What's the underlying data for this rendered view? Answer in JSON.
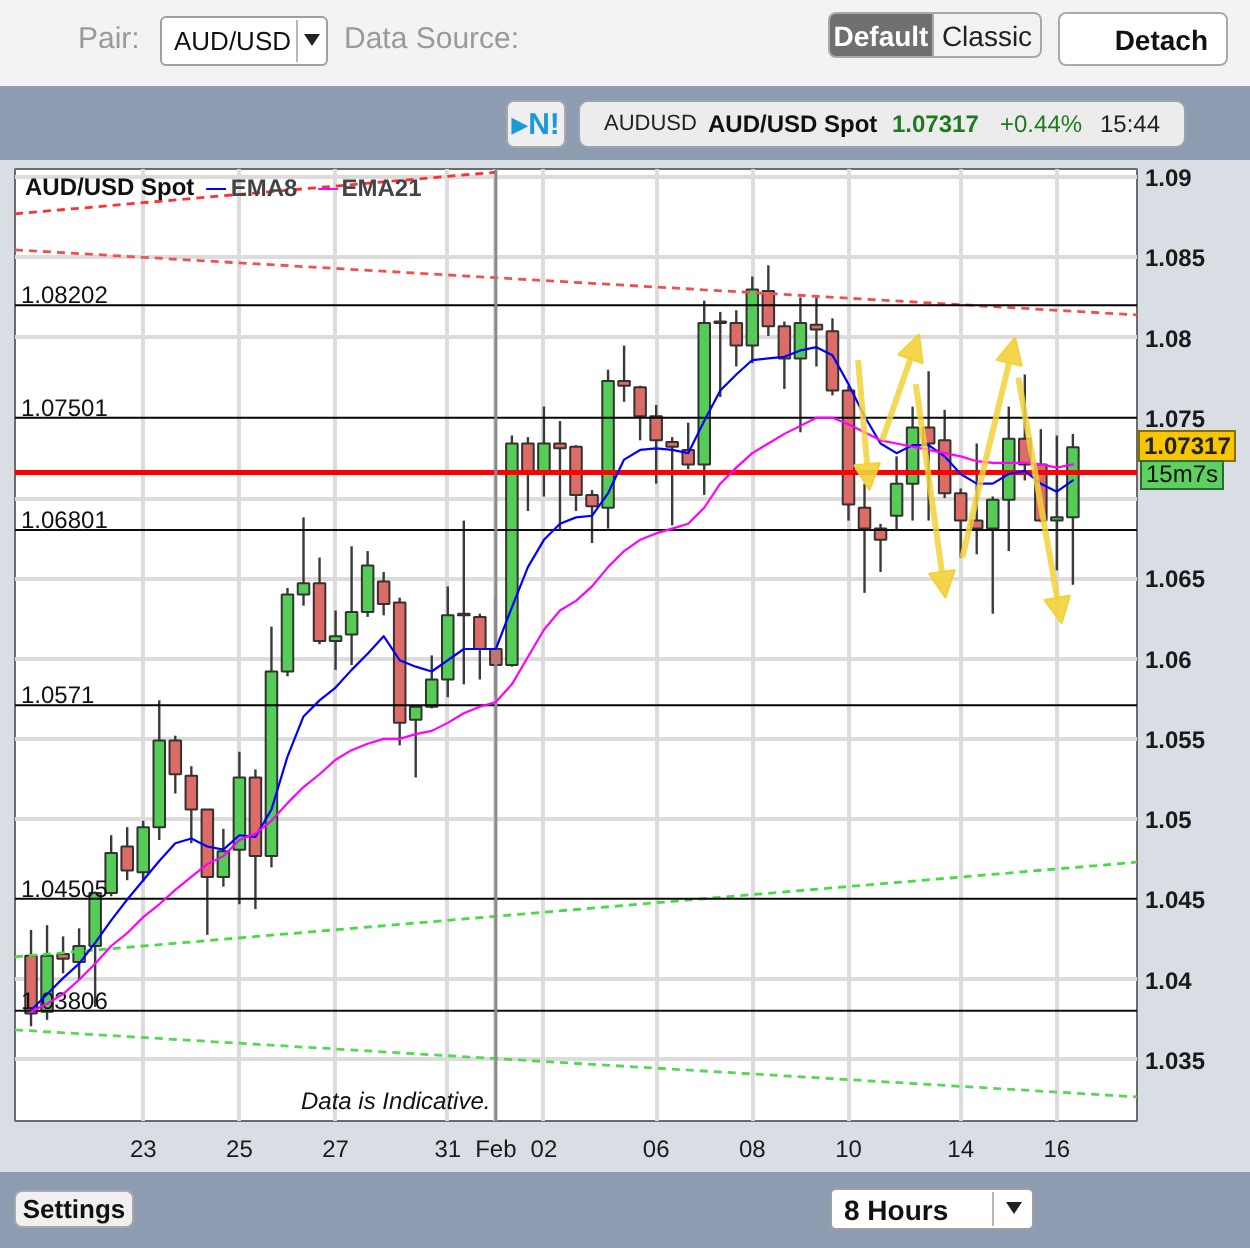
{
  "chart_data": {
    "type": "candlestick",
    "legend_title": "AUD/USD Spot",
    "legend": "top left",
    "grid": true,
    "categories": [
      null,
      null,
      null,
      null,
      null,
      null,
      null,
      "23",
      null,
      null,
      null,
      null,
      null,
      "25",
      null,
      null,
      null,
      null,
      null,
      "27",
      null,
      null,
      null,
      null,
      null,
      null,
      "31",
      null,
      null,
      "Feb",
      null,
      null,
      "02",
      null,
      null,
      null,
      null,
      null,
      null,
      "06",
      null,
      null,
      null,
      null,
      null,
      "08",
      null,
      null,
      null,
      null,
      null,
      "10",
      null,
      null,
      null,
      null,
      null,
      null,
      "14",
      null,
      null,
      null,
      null,
      null,
      "16",
      null
    ],
    "ylim": [
      1.0312,
      1.0905
    ],
    "yticks": [
      1.035,
      1.04,
      1.045,
      1.05,
      1.055,
      1.06,
      1.065,
      {
        "value": 1.07,
        "label": null
      },
      1.075,
      1.08,
      1.085,
      1.09
    ],
    "ohlc": [
      [
        1.0415,
        1.0431,
        1.0371,
        1.0379
      ],
      [
        1.038,
        1.0434,
        1.0375,
        1.0415
      ],
      [
        1.0416,
        1.0427,
        1.0404,
        1.0413
      ],
      [
        1.0411,
        1.0432,
        1.04,
        1.0421
      ],
      [
        1.0421,
        1.0455,
        1.0383,
        1.0454
      ],
      [
        1.0454,
        1.049,
        1.0452,
        1.0479
      ],
      [
        1.0483,
        1.0495,
        1.0462,
        1.0468
      ],
      [
        1.0467,
        1.0499,
        1.0461,
        1.0495
      ],
      [
        1.0495,
        1.0574,
        1.0487,
        1.0549
      ],
      [
        1.0549,
        1.0552,
        1.0516,
        1.0528
      ],
      [
        1.0527,
        1.0533,
        1.0485,
        1.0506
      ],
      [
        1.0506,
        1.0506,
        1.0428,
        1.0464
      ],
      [
        1.0464,
        1.0494,
        1.0458,
        1.048
      ],
      [
        1.0481,
        1.0542,
        1.0447,
        1.0526
      ],
      [
        1.0526,
        1.0531,
        1.0444,
        1.0477
      ],
      [
        1.0477,
        1.062,
        1.047,
        1.0592
      ],
      [
        1.0592,
        1.0644,
        1.0589,
        1.064
      ],
      [
        1.064,
        1.0688,
        1.0633,
        1.0647
      ],
      [
        1.0647,
        1.0663,
        1.0609,
        1.0611
      ],
      [
        1.0611,
        1.063,
        1.0593,
        1.0614
      ],
      [
        1.0615,
        1.067,
        1.0596,
        1.0629
      ],
      [
        1.0629,
        1.0667,
        1.0626,
        1.0658
      ],
      [
        1.0648,
        1.0654,
        1.0627,
        1.0634
      ],
      [
        1.0635,
        1.0638,
        1.0546,
        1.056
      ],
      [
        1.0562,
        1.057,
        1.0526,
        1.057
      ],
      [
        1.057,
        1.0602,
        1.0569,
        1.0587
      ],
      [
        1.0587,
        1.0645,
        1.0576,
        1.0627
      ],
      [
        1.0628,
        1.0686,
        1.0584,
        1.0627
      ],
      [
        1.0626,
        1.0628,
        1.0587,
        1.0606
      ],
      [
        1.0606,
        1.0638,
        1.0576,
        1.0596
      ],
      [
        1.0596,
        1.0739,
        1.0595,
        1.0734
      ],
      [
        1.0734,
        1.0738,
        1.0692,
        1.0716
      ],
      [
        1.0716,
        1.0757,
        1.0701,
        1.0734
      ],
      [
        1.0734,
        1.0748,
        1.068,
        1.0731
      ],
      [
        1.0732,
        1.0733,
        1.0692,
        1.0702
      ],
      [
        1.0702,
        1.0705,
        1.0672,
        1.0695
      ],
      [
        1.0694,
        1.078,
        1.0681,
        1.0773
      ],
      [
        1.0773,
        1.0795,
        1.076,
        1.077
      ],
      [
        1.0769,
        1.077,
        1.0736,
        1.0751
      ],
      [
        1.0751,
        1.0758,
        1.0709,
        1.0736
      ],
      [
        1.0735,
        1.0738,
        1.0683,
        1.0732
      ],
      [
        1.073,
        1.0747,
        1.0718,
        1.0721
      ],
      [
        1.0721,
        1.0823,
        1.0702,
        1.0809
      ],
      [
        1.0809,
        1.0816,
        1.0763,
        1.081
      ],
      [
        1.0809,
        1.0817,
        1.0782,
        1.0795
      ],
      [
        1.0795,
        1.0838,
        1.0784,
        1.083
      ],
      [
        1.0829,
        1.0845,
        1.0801,
        1.0807
      ],
      [
        1.0807,
        1.081,
        1.0768,
        1.0787
      ],
      [
        1.0787,
        1.0825,
        1.0741,
        1.0809
      ],
      [
        1.0808,
        1.0825,
        1.0782,
        1.0805
      ],
      [
        1.0804,
        1.0812,
        1.0764,
        1.0767
      ],
      [
        1.0767,
        1.077,
        1.0686,
        1.0696
      ],
      [
        1.0694,
        1.0709,
        1.0641,
        1.0681
      ],
      [
        1.0681,
        1.0684,
        1.0654,
        1.0674
      ],
      [
        1.0689,
        1.0726,
        1.068,
        1.0709
      ],
      [
        1.0709,
        1.0757,
        1.0686,
        1.0744
      ],
      [
        1.0744,
        1.0779,
        1.0686,
        1.0734
      ],
      [
        1.0736,
        1.0755,
        1.07,
        1.0703
      ],
      [
        1.0703,
        1.0706,
        1.0663,
        1.0686
      ],
      [
        1.0686,
        1.0734,
        1.0665,
        1.0681
      ],
      [
        1.0681,
        1.0701,
        1.0628,
        1.0699
      ],
      [
        1.0699,
        1.0757,
        1.0667,
        1.0737
      ],
      [
        1.0737,
        1.0777,
        1.0711,
        1.0721
      ],
      [
        1.0721,
        1.0743,
        1.0685,
        1.0686
      ],
      [
        1.0686,
        1.0739,
        1.0655,
        1.0688
      ],
      [
        1.0688,
        1.074,
        1.0646,
        1.07317
      ]
    ],
    "colors": [
      "#dd6b66",
      "#55cc55",
      "#dd6b66",
      "#55cc55",
      "#55cc55",
      "#55cc55",
      "#dd6b66",
      "#55cc55",
      "#55cc55",
      "#dd6b66",
      "#dd6b66",
      "#dd6b66",
      "#55cc55",
      "#55cc55",
      "#dd6b66",
      "#55cc55",
      "#55cc55",
      "#55cc55",
      "#dd6b66",
      "#55cc55",
      "#55cc55",
      "#55cc55",
      "#dd6b66",
      "#dd6b66",
      "#55cc55",
      "#55cc55",
      "#55cc55",
      "#dd6b66",
      "#dd6b66",
      "#dd6b66",
      "#55cc55",
      "#dd6b66",
      "#55cc55",
      "#dd6b66",
      "#dd6b66",
      "#dd6b66",
      "#55cc55",
      "#dd6b66",
      "#dd6b66",
      "#dd6b66",
      "#dd6b66",
      "#dd6b66",
      "#55cc55",
      "#55cc55",
      "#dd6b66",
      "#55cc55",
      "#dd6b66",
      "#dd6b66",
      "#55cc55",
      "#dd6b66",
      "#dd6b66",
      "#dd6b66",
      "#dd6b66",
      "#dd6b66",
      "#55cc55",
      "#55cc55",
      "#dd6b66",
      "#dd6b66",
      "#dd6b66",
      "#dd6b66",
      "#55cc55",
      "#55cc55",
      "#dd6b66",
      "#dd6b66",
      "#55cc55",
      "#55cc55"
    ],
    "series": [
      {
        "name": "EMA8",
        "type": "line",
        "color": "#0000ff",
        "values": [
          1.0381,
          1.0391,
          1.0401,
          1.041,
          1.0423,
          1.0437,
          1.045,
          1.0462,
          1.0474,
          1.0485,
          1.0488,
          1.0483,
          1.0481,
          1.049,
          1.0489,
          1.0506,
          1.0539,
          1.0564,
          1.0574,
          1.0582,
          1.0593,
          1.0603,
          1.0614,
          1.0599,
          1.0595,
          1.0592,
          1.0599,
          1.0606,
          1.0606,
          1.0606,
          1.0632,
          1.0657,
          1.0674,
          1.0684,
          1.0688,
          1.0689,
          1.0703,
          1.0724,
          1.073,
          1.0731,
          1.073,
          1.0728,
          1.0748,
          1.0767,
          1.0777,
          1.0786,
          1.0787,
          1.0788,
          1.0792,
          1.0794,
          1.0789,
          1.0771,
          1.0751,
          1.0734,
          1.0728,
          1.0733,
          1.0733,
          1.0726,
          1.0715,
          1.0709,
          1.0709,
          1.0715,
          1.0717,
          1.0709,
          1.0704,
          1.0711
        ]
      },
      {
        "name": "EMA21",
        "type": "line",
        "color": "#ff00ff",
        "values": [
          1.038,
          1.0385,
          1.0391,
          1.04,
          1.041,
          1.0421,
          1.0429,
          1.0439,
          1.0447,
          1.0456,
          1.0464,
          1.0472,
          1.0477,
          1.0487,
          1.0491,
          1.0499,
          1.051,
          1.052,
          1.0528,
          1.0537,
          1.0543,
          1.0547,
          1.055,
          1.055,
          1.0553,
          1.0555,
          1.056,
          1.0566,
          1.057,
          1.0573,
          1.0584,
          1.0601,
          1.0618,
          1.063,
          1.0636,
          1.0645,
          1.0657,
          1.0667,
          1.0674,
          1.0678,
          1.0681,
          1.0684,
          1.0694,
          1.0709,
          1.0719,
          1.0728,
          1.0734,
          1.074,
          1.0745,
          1.075,
          1.075,
          1.0746,
          1.0741,
          1.0736,
          1.0734,
          1.0732,
          1.073,
          1.0728,
          1.0726,
          1.0723,
          1.0722,
          1.0722,
          1.0722,
          1.0721,
          1.0719,
          1.0721
        ]
      },
      {
        "type": "line",
        "color": "#ff3030",
        "line_style": "dashed",
        "x": [
          "23",
          "Feb"
        ],
        "values": [
          1.0884,
          1.0903
        ]
      },
      {
        "type": "line",
        "color": "#f25050",
        "line_style": "dashed",
        "x": [
          "23",
          "16"
        ],
        "values": [
          1.085,
          1.0817
        ]
      },
      {
        "type": "line",
        "color": "#44dd44",
        "line_style": "dashed",
        "x": [
          "23",
          "16"
        ],
        "values": [
          1.0421,
          1.0469
        ]
      },
      {
        "type": "line",
        "color": "#55d855",
        "line_style": "dashed",
        "x": [
          "23",
          "16"
        ],
        "values": [
          1.0364,
          1.033
        ]
      },
      {
        "name": "1.08202",
        "type": "line",
        "color": "#000000",
        "x": [
          "23",
          "16"
        ],
        "values": [
          1.08202,
          1.08202
        ]
      },
      {
        "name": "1.07501",
        "type": "line",
        "color": "#060606",
        "x": [
          "23",
          "16"
        ],
        "values": [
          1.07501,
          1.07501
        ]
      },
      {
        "name": "1.06801",
        "type": "line",
        "color": "#0c0c0c",
        "x": [
          "23",
          "16"
        ],
        "values": [
          1.06801,
          1.06801
        ]
      },
      {
        "name": "1.0571",
        "type": "line",
        "color": "#030303",
        "x": [
          "23",
          "16"
        ],
        "values": [
          1.0571,
          1.0571
        ]
      },
      {
        "name": "1.04505",
        "type": "line",
        "color": "#090909",
        "x": [
          "23",
          "16"
        ],
        "values": [
          1.04505,
          1.04505
        ]
      },
      {
        "name": "1.03806",
        "type": "line",
        "color": "#0f0f0f",
        "x": [
          "23",
          "16"
        ],
        "values": [
          1.03806,
          1.03806
        ]
      }
    ],
    "ref_lines": [
      {
        "axis": "y",
        "value": 1.0716,
        "color": "#ff0000"
      },
      {
        "axis": "x",
        "value": "Feb",
        "color": "#8a8a8a"
      }
    ],
    "annotations": [
      "Pair:",
      "AUD/USD",
      "Data Source:",
      "Default",
      "Classic",
      "Detach",
      "▸N!",
      "AUDUSD",
      "AUD/USD Spot",
      "1.07317",
      "+0.44%",
      "15:44",
      "1.07317",
      "15m7s",
      "Data is Indicative.",
      "Settings",
      "8 Hours"
    ]
  }
}
